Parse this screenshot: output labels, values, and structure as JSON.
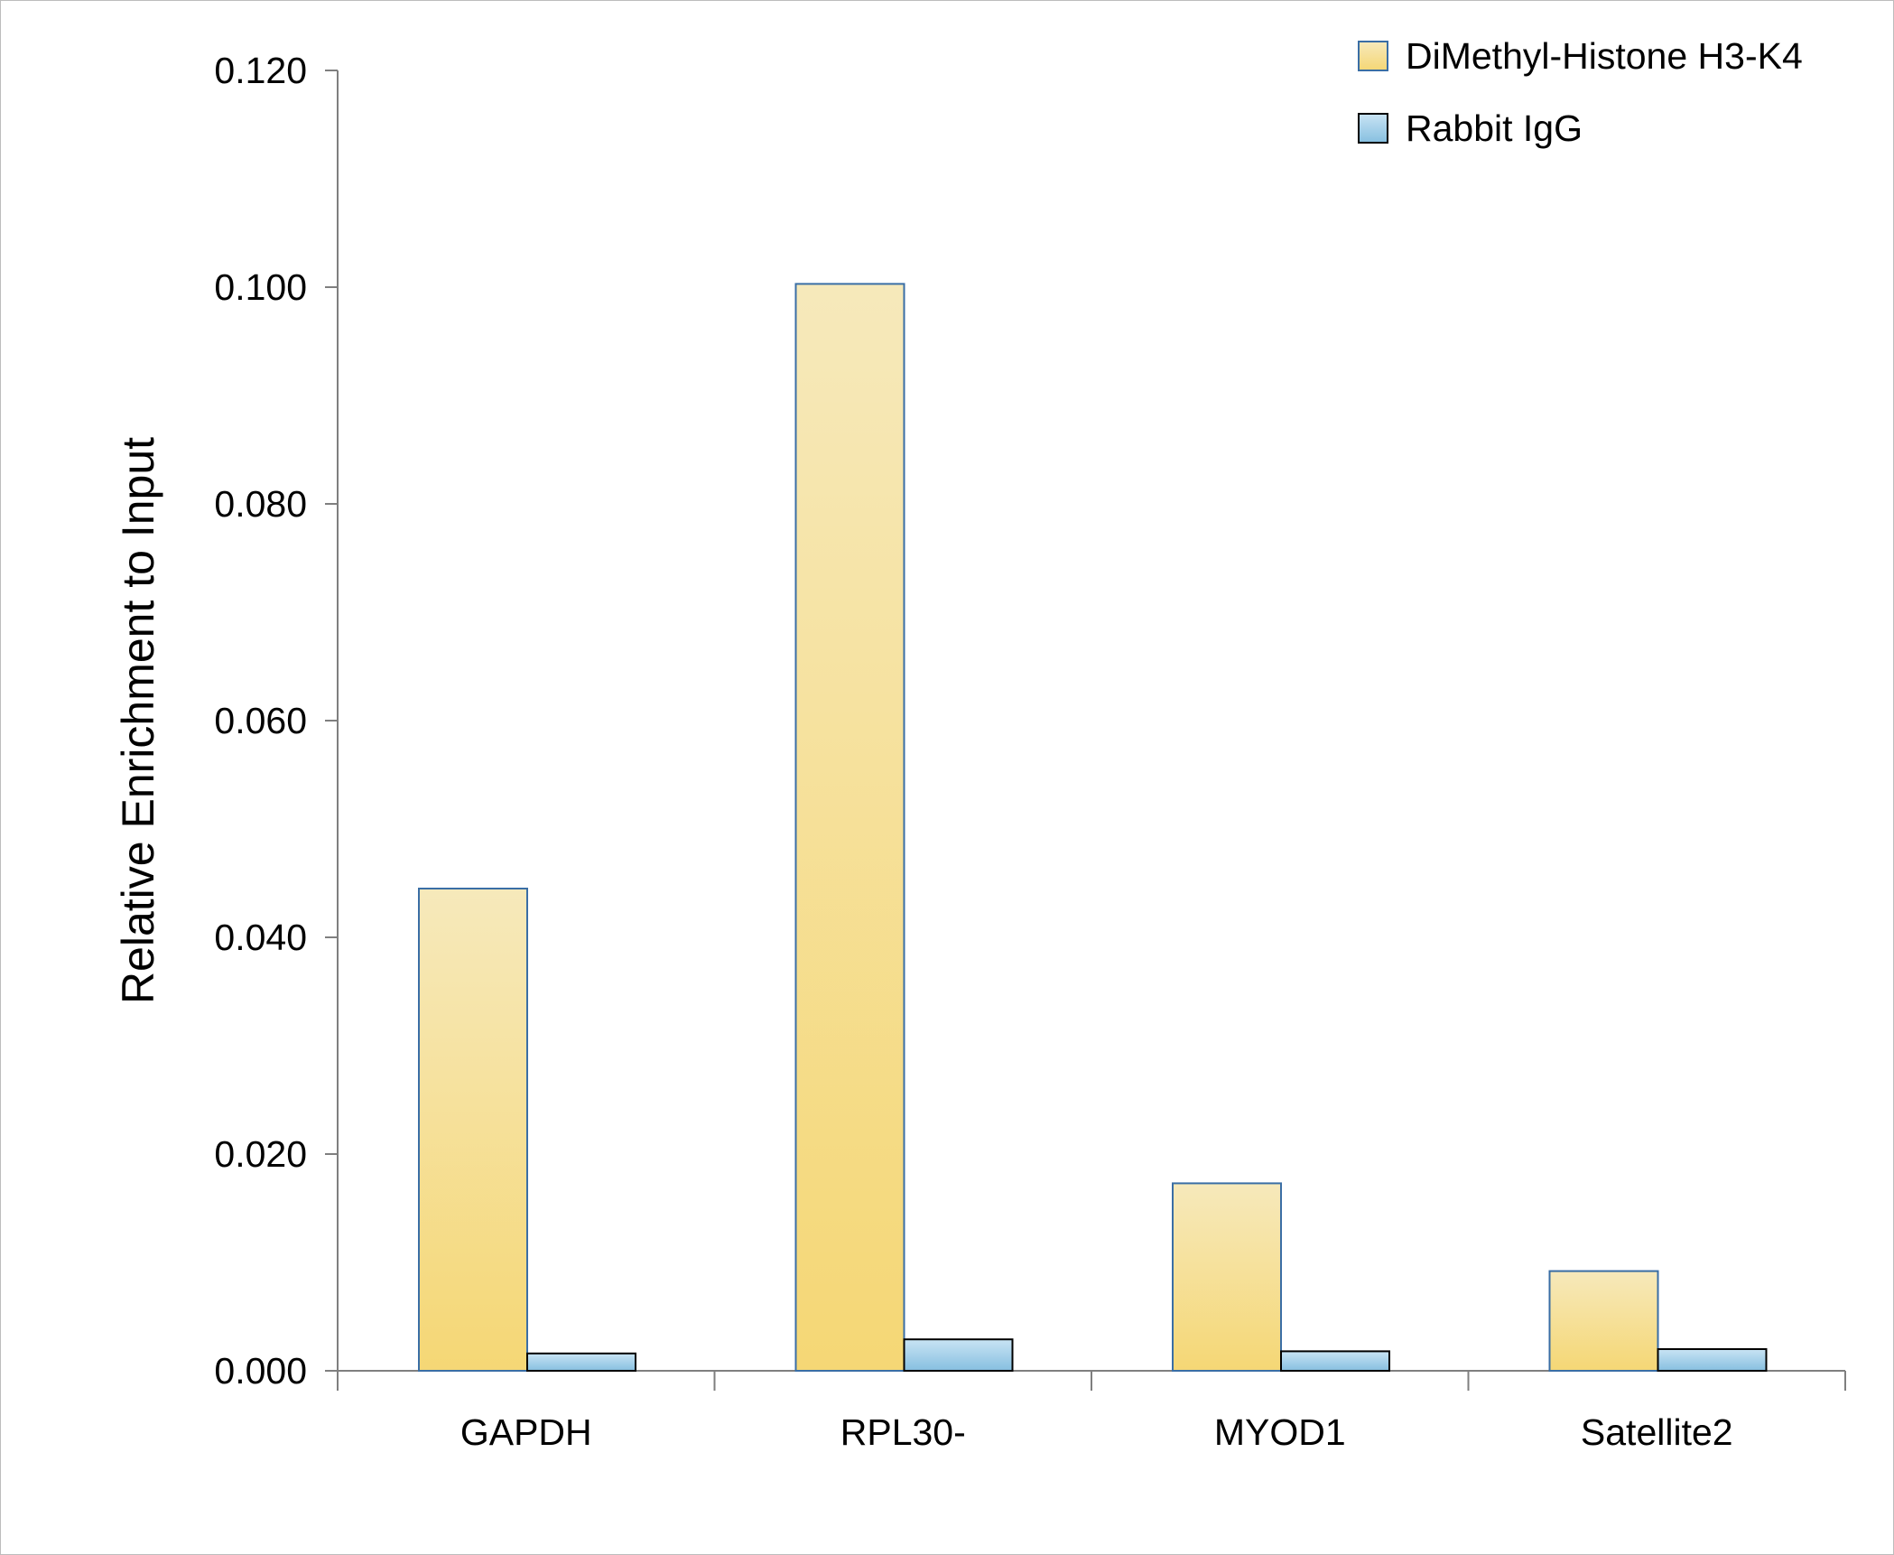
{
  "chart_data": {
    "type": "bar",
    "title": "",
    "xlabel": "",
    "ylabel": "Relative Enrichment to Input",
    "categories": [
      "GAPDH",
      "RPL30-",
      "MYOD1",
      "Satellite2"
    ],
    "series": [
      {
        "name": "DiMethyl-Histone H3-K4",
        "values": [
          0.0445,
          0.1003,
          0.0173,
          0.0092
        ],
        "color_top": "#f6e9bb",
        "color_bottom": "#f5d775",
        "edge": "#3a6ea5"
      },
      {
        "name": "Rabbit IgG",
        "values": [
          0.0016,
          0.0029,
          0.0018,
          0.002
        ],
        "color_top": "#c9e4f4",
        "color_bottom": "#86bfe0",
        "edge": "#000000"
      }
    ],
    "ylim": [
      0,
      0.12
    ],
    "yticks": [
      "0.000",
      "0.020",
      "0.040",
      "0.060",
      "0.080",
      "0.100",
      "0.120"
    ],
    "grid": false,
    "legend_position": "top-right"
  }
}
